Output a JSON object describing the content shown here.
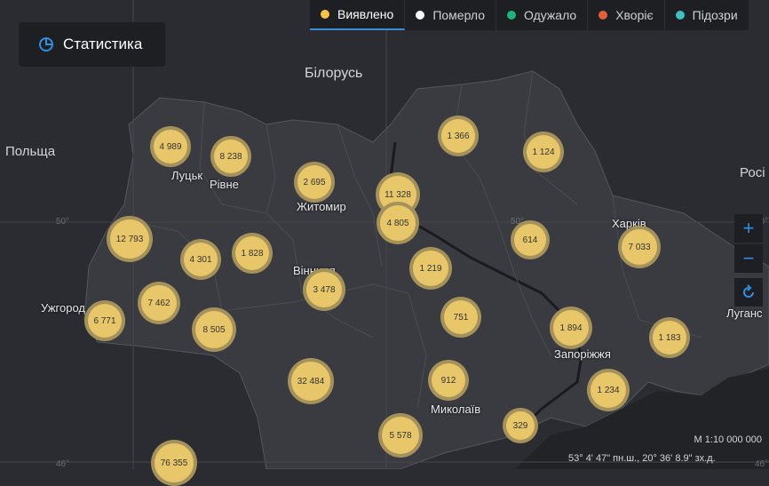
{
  "stat_button": {
    "label": "Статистика",
    "icon": "pie-chart-icon"
  },
  "legend": [
    {
      "label": "Виявлено",
      "color": "#f5c542",
      "active": true
    },
    {
      "label": "Померло",
      "color": "#ffffff",
      "active": false
    },
    {
      "label": "Одужало",
      "color": "#1fb47a",
      "active": false
    },
    {
      "label": "Хворіє",
      "color": "#e0603a",
      "active": false
    },
    {
      "label": "Підозри",
      "color": "#3cc0c0",
      "active": false
    }
  ],
  "zoom": {
    "in": "+",
    "out": "−",
    "reset_icon": "refresh-icon"
  },
  "scale": "M 1:10 000 000",
  "coordinates": "53° 4' 47\" пн.ш., 20° 36' 8.9\" зх.д.",
  "countries": [
    "Білорусь",
    "Польща",
    "Росі"
  ],
  "grid_labels": [
    "50°",
    "50°",
    "50°",
    "46°",
    "46°"
  ],
  "cities": [
    "Луцьк",
    "Рівне",
    "Житомир",
    "Вінниця",
    "Ужгород",
    "Харків",
    "Запоріжжя",
    "Миколаїв",
    "Луганс"
  ],
  "clusters": [
    "4 989",
    "8 238",
    "2 695",
    "11 328",
    "4 805",
    "1 366",
    "1 124",
    "12 793",
    "4 301",
    "1 828",
    "614",
    "7 033",
    "1 219",
    "7 462",
    "3 478",
    "6 771",
    "8 505",
    "751",
    "1 894",
    "1 183",
    "32 484",
    "912",
    "1 234",
    "329",
    "5 578",
    "76 355"
  ]
}
